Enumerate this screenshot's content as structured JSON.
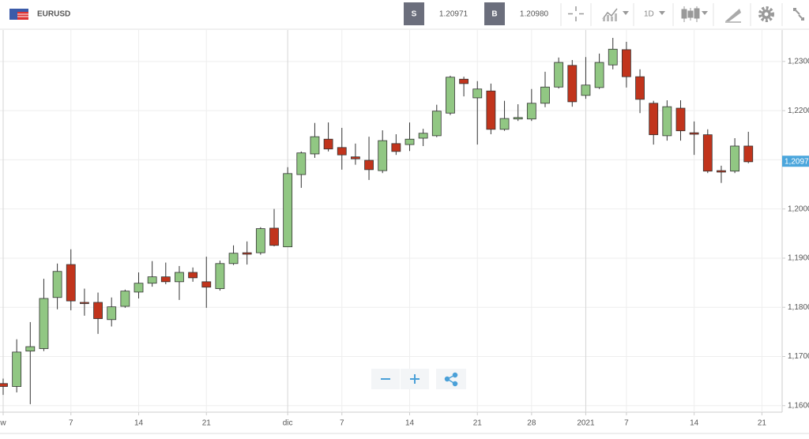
{
  "toolbar": {
    "symbol": "EURUSD",
    "sell": {
      "label": "S",
      "price": "1.20971"
    },
    "buy": {
      "label": "B",
      "price": "1.20980"
    },
    "interval": "1D"
  },
  "chart_data": {
    "type": "candlestick",
    "categories": [
      "w",
      null,
      null,
      null,
      null,
      "7",
      null,
      null,
      null,
      null,
      "14",
      null,
      null,
      null,
      null,
      "21",
      null,
      null,
      null,
      null,
      null,
      "dic",
      null,
      null,
      null,
      "7",
      null,
      null,
      null,
      null,
      "14",
      null,
      null,
      null,
      null,
      "21",
      null,
      null,
      null,
      "28",
      null,
      null,
      null,
      "2021",
      null,
      null,
      "7",
      null,
      null,
      null,
      null,
      "14",
      null,
      null,
      null,
      null,
      "21",
      null
    ],
    "open": [
      1.1645,
      1.1639,
      1.1711,
      1.1716,
      1.182,
      1.1887,
      1.181,
      1.181,
      1.1775,
      1.1802,
      1.1831,
      1.1849,
      1.1862,
      1.1852,
      1.1871,
      1.1852,
      1.1838,
      1.1889,
      1.1911,
      1.1911,
      1.1961,
      1.1923,
      1.207,
      1.2112,
      1.2142,
      1.2125,
      1.2106,
      1.2099,
      1.2078,
      1.2133,
      1.2131,
      1.2144,
      1.2149,
      1.2195,
      1.2264,
      1.2226,
      1.224,
      1.2162,
      1.2183,
      1.2183,
      1.2215,
      1.2248,
      1.2292,
      1.2231,
      1.2247,
      1.2293,
      1.2324,
      1.2269,
      1.2215,
      1.2149,
      1.2205,
      1.2155,
      1.2151,
      1.2078,
      1.2077,
      1.2128,
      null,
      null
    ],
    "high": [
      1.1655,
      1.1735,
      1.177,
      1.1858,
      1.1889,
      1.1918,
      1.1838,
      1.183,
      1.182,
      1.1836,
      1.1871,
      1.1894,
      1.1891,
      1.1884,
      1.1881,
      1.1903,
      1.1895,
      1.1926,
      1.1934,
      1.1963,
      1.2,
      1.2085,
      1.2117,
      1.2175,
      1.2176,
      1.2165,
      1.2133,
      1.2147,
      1.216,
      1.2152,
      1.2176,
      1.2163,
      1.2212,
      1.2271,
      1.2269,
      1.226,
      1.2255,
      1.222,
      1.2213,
      1.2244,
      1.2279,
      1.2308,
      1.2303,
      1.2309,
      1.2316,
      1.2348,
      1.234,
      1.2284,
      1.222,
      1.2221,
      1.2221,
      1.2178,
      1.2162,
      1.2088,
      1.2144,
      1.2157,
      null,
      null
    ],
    "low": [
      1.1622,
      1.1627,
      1.1603,
      1.1711,
      1.1796,
      1.1794,
      1.1783,
      1.1746,
      1.1761,
      1.1799,
      1.1818,
      1.1842,
      1.1847,
      1.1815,
      1.1852,
      1.1799,
      1.1834,
      1.1886,
      1.1887,
      1.1907,
      1.1924,
      1.1923,
      1.2043,
      1.2104,
      1.2117,
      1.208,
      1.209,
      1.2059,
      1.2073,
      1.211,
      1.2118,
      1.2128,
      1.2146,
      1.2191,
      1.2229,
      1.2131,
      1.2152,
      1.2159,
      1.2179,
      1.2179,
      1.2207,
      1.2245,
      1.2208,
      1.2224,
      1.2244,
      1.2284,
      1.2247,
      1.2195,
      1.2131,
      1.2139,
      1.2139,
      1.211,
      1.2073,
      1.2053,
      1.2073,
      1.2093,
      null,
      null
    ],
    "close": [
      1.1639,
      1.1709,
      1.172,
      1.1818,
      1.1873,
      1.1813,
      1.1809,
      1.1777,
      1.1801,
      1.1833,
      1.1849,
      1.1862,
      1.1852,
      1.1871,
      1.186,
      1.1841,
      1.1889,
      1.191,
      1.1908,
      1.196,
      1.1926,
      1.2072,
      1.2114,
      1.2147,
      1.2122,
      1.211,
      1.2102,
      1.208,
      1.2139,
      1.2117,
      1.2142,
      1.2154,
      1.2199,
      1.2268,
      1.2255,
      1.2244,
      1.2162,
      1.2184,
      1.2186,
      1.2215,
      1.2248,
      1.2298,
      1.2218,
      1.2252,
      1.2298,
      1.2325,
      1.2269,
      1.2223,
      1.2151,
      1.2208,
      1.2159,
      1.2152,
      1.2077,
      1.2075,
      1.2128,
      1.2096,
      null,
      null
    ],
    "up_color": "#91c783",
    "down_color": "#c1341c",
    "ylim": [
      1.159,
      1.2364
    ],
    "yticks": [
      {
        "value": 1.16,
        "label": "1,1600"
      },
      {
        "value": 1.17,
        "label": "1,1700"
      },
      {
        "value": 1.18,
        "label": "1,1800"
      },
      {
        "value": 1.19,
        "label": "1,1900"
      },
      {
        "value": 1.2,
        "label": "1,2000"
      },
      {
        "value": 1.21,
        "label": "1,2100"
      },
      {
        "value": 1.22,
        "label": "1,2200"
      },
      {
        "value": 1.23,
        "label": "1,2300"
      }
    ],
    "price_label": {
      "value": 1.20971,
      "label": "1,20971",
      "color": "#4ba6dc"
    },
    "grid": true
  }
}
